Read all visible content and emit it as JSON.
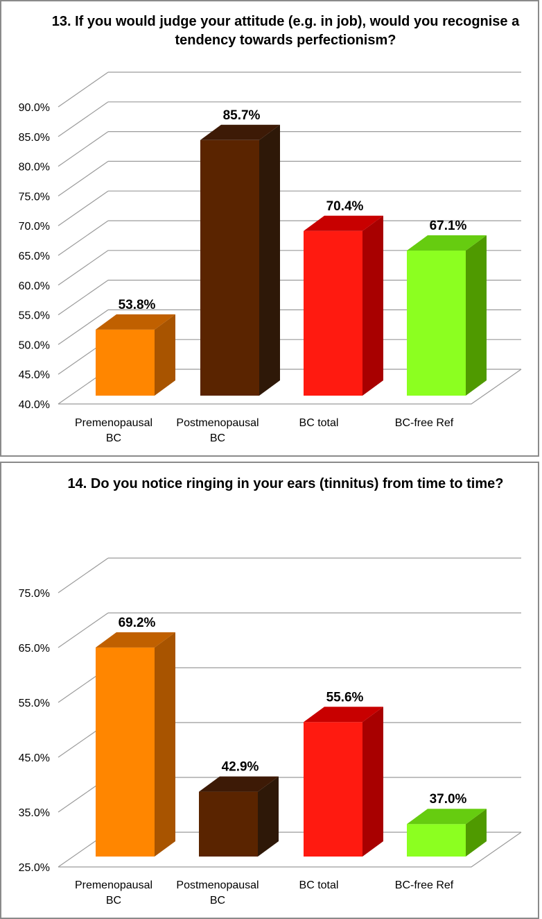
{
  "colors": {
    "grid": "#9a9a9a",
    "frame": "#8a8a8a",
    "bar_front": [
      "#ff8600",
      "#5a2400",
      "#ff1a10",
      "#8cff20"
    ],
    "bar_side": [
      "#a85400",
      "#2e1808",
      "#a80000",
      "#4f9a00"
    ],
    "bar_top": [
      "#c06000",
      "#3d1a06",
      "#c80000",
      "#66cc10"
    ]
  },
  "chart_data": [
    {
      "type": "bar",
      "title": "13. If you would judge your attitude (e.g. in job), would you recognise a tendency towards perfectionism?",
      "categories": [
        [
          "Premenopausal",
          "BC"
        ],
        [
          "Postmenopausal",
          "BC"
        ],
        [
          "BC total"
        ],
        [
          "BC-free Ref"
        ]
      ],
      "values": [
        53.8,
        85.7,
        70.4,
        67.1
      ],
      "value_labels": [
        "53.8%",
        "85.7%",
        "70.4%",
        "67.1%"
      ],
      "ylim": [
        40,
        90
      ],
      "yticks": [
        "40.0%",
        "45.0%",
        "50.0%",
        "55.0%",
        "60.0%",
        "65.0%",
        "70.0%",
        "75.0%",
        "80.0%",
        "85.0%",
        "90.0%"
      ],
      "xlabel": "",
      "ylabel": "",
      "grid": true,
      "style": "3d"
    },
    {
      "type": "bar",
      "title": "14. Do you notice ringing in your ears (tinnitus) from time to time?",
      "categories": [
        [
          "Premenopausal",
          "BC"
        ],
        [
          "Postmenopausal",
          "BC"
        ],
        [
          "BC total"
        ],
        [
          "BC-free Ref"
        ]
      ],
      "values": [
        69.2,
        42.9,
        55.6,
        37.0
      ],
      "value_labels": [
        "69.2%",
        "42.9%",
        "55.6%",
        "37.0%"
      ],
      "ylim": [
        25,
        75
      ],
      "yticks": [
        "25.0%",
        "35.0%",
        "45.0%",
        "55.0%",
        "65.0%",
        "75.0%"
      ],
      "xlabel": "",
      "ylabel": "",
      "grid": true,
      "style": "3d"
    }
  ]
}
